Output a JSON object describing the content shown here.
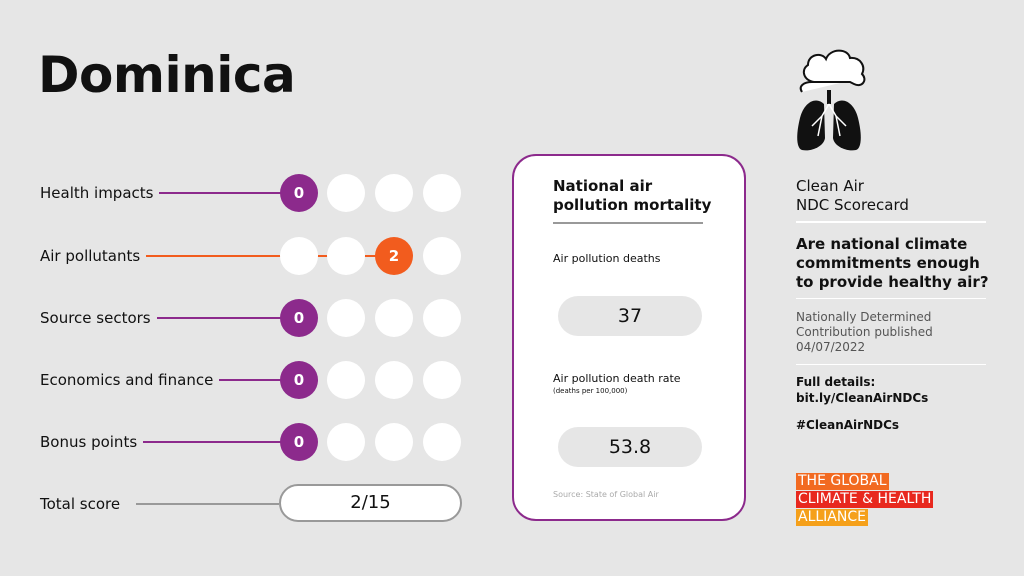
{
  "title": "Dominica",
  "rows": [
    {
      "label": "Health impacts",
      "score": "0",
      "color": "#8c2a8c",
      "filled_index": 0
    },
    {
      "label": "Air pollutants",
      "score": "2",
      "color": "#f25c1e",
      "filled_index": 2
    },
    {
      "label": "Source sectors",
      "score": "0",
      "color": "#8c2a8c",
      "filled_index": 0
    },
    {
      "label": "Economics and finance",
      "score": "0",
      "color": "#8c2a8c",
      "filled_index": 0
    },
    {
      "label": "Bonus points",
      "score": "0",
      "color": "#8c2a8c",
      "filled_index": 0
    }
  ],
  "total": {
    "label": "Total score",
    "value": "2/15"
  },
  "card": {
    "title_line1": "National air",
    "title_line2": "pollution mortality",
    "deaths_label": "Air pollution deaths",
    "deaths_value": "37",
    "rate_label": "Air pollution death rate",
    "rate_sub": "(deaths per 100,000)",
    "rate_value": "53.8",
    "source": "Source: State of Global Air"
  },
  "side": {
    "icon": "cloud-lungs-icon",
    "title_line1": "Clean Air",
    "title_line2": "NDC Scorecard",
    "question_lines": [
      "Are national climate",
      "commitments enough",
      "to provide healthy air?"
    ],
    "ndc_lines": [
      "Nationally Determined",
      "Contribution published",
      "04/07/2022"
    ],
    "details_label": "Full details:",
    "details_link": "bit.ly/CleanAirNDCs",
    "hashtag": "#CleanAirNDCs",
    "logo": [
      "THE GLOBAL",
      "CLIMATE & HEALTH",
      "ALLIANCE"
    ]
  },
  "colors": {
    "purple": "#8c2a8c",
    "orange": "#f25c1e",
    "logo_orange": "#f26a21",
    "logo_red": "#e8281e",
    "logo_amber": "#f5a01a"
  }
}
